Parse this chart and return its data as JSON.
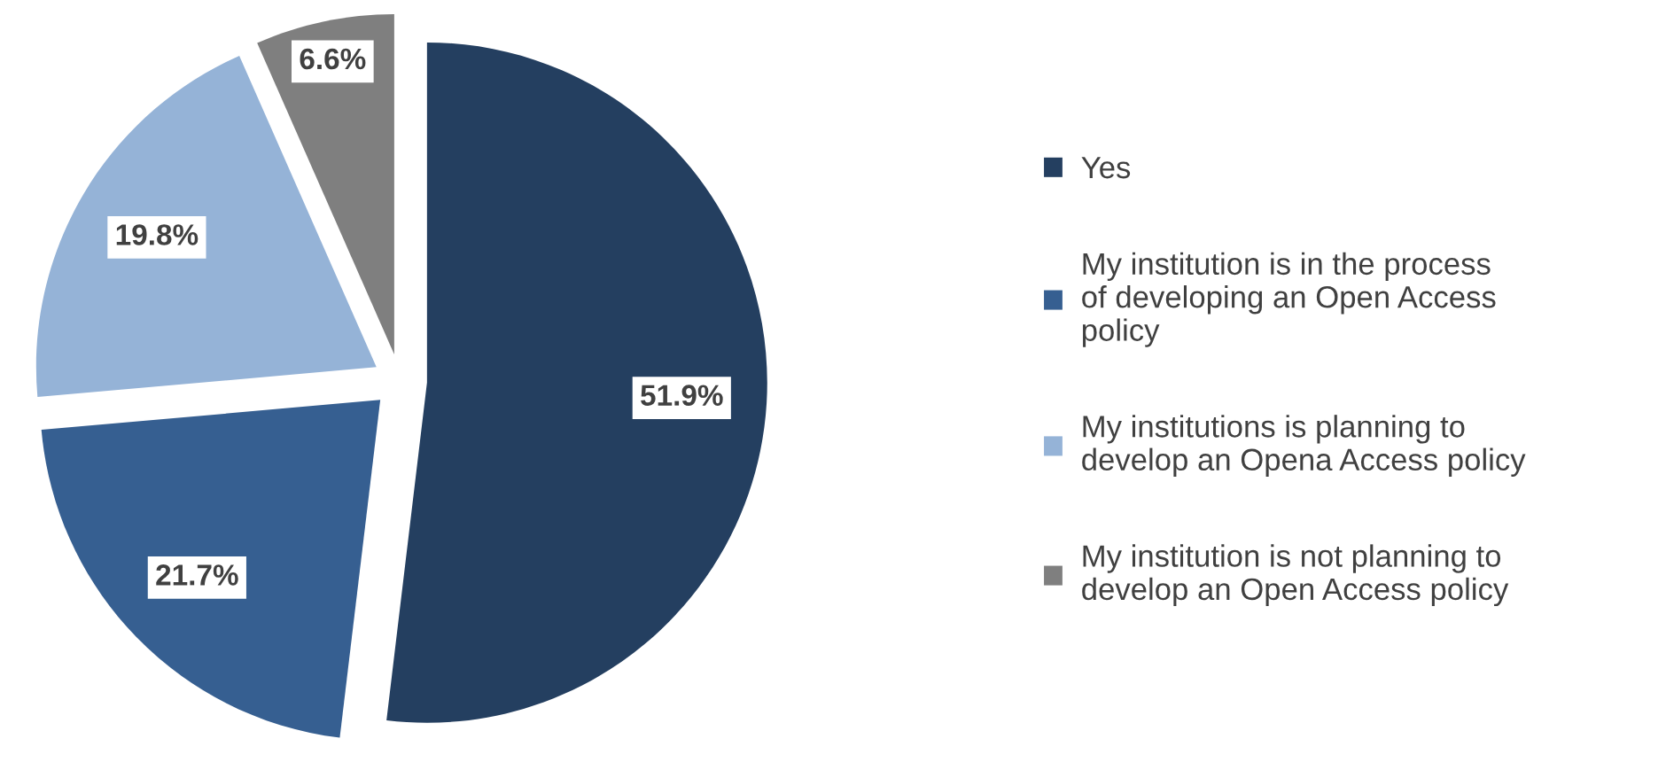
{
  "chart_data": {
    "type": "pie",
    "categories": [
      "Yes",
      "My institution is in the process of developing an Open Access policy",
      "My institutions is planning to develop an Opena Access policy",
      "My institution is not planning to develop an Open Access policy"
    ],
    "values": [
      51.9,
      21.7,
      19.8,
      6.6
    ],
    "colors": [
      "#243f60",
      "#365f91",
      "#95b3d7",
      "#7f7f7f"
    ],
    "value_labels": [
      "51.9%",
      "21.7%",
      "19.8%",
      "6.6%"
    ],
    "legend": "right"
  }
}
